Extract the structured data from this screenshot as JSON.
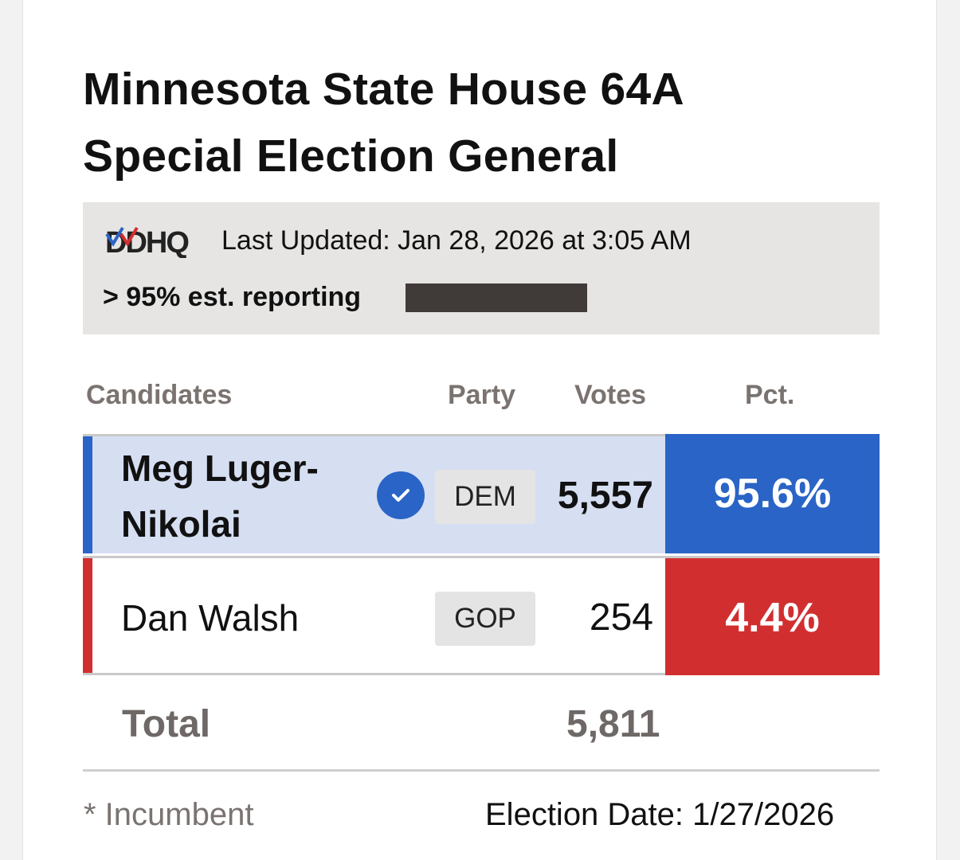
{
  "header": {
    "title_line1": "Minnesota State House 64A",
    "title_line2": "Special Election General"
  },
  "status": {
    "logo_text": "DDHQ",
    "last_updated": "Last Updated: Jan 28, 2026 at 3:05 AM",
    "reporting": "> 95% est. reporting",
    "reporting_fraction": 0.95
  },
  "table": {
    "columns": {
      "candidates": "Candidates",
      "party": "Party",
      "votes": "Votes",
      "pct": "Pct."
    },
    "rows": [
      {
        "name": "Meg Luger-Nikolai",
        "winner": true,
        "party": "DEM",
        "votes": "5,557",
        "pct": "95.6%",
        "color": "#2a64c6"
      },
      {
        "name": "Dan Walsh",
        "winner": false,
        "party": "GOP",
        "votes": "254",
        "pct": "4.4%",
        "color": "#d12f2f"
      }
    ],
    "total_label": "Total",
    "total_votes": "5,811"
  },
  "footer": {
    "incumbent_note": "* Incumbent",
    "election_date": "Election Date: 1/27/2026"
  },
  "icons": {
    "winner": "check-circle-icon",
    "logo": "ddhq-logo-icon"
  }
}
